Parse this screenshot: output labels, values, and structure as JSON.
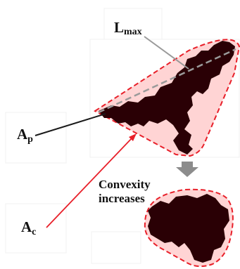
{
  "labels": {
    "lmax_main": "L",
    "lmax_sub": "max",
    "ap_main": "A",
    "ap_sub": "p",
    "ac_main": "A",
    "ac_sub": "c",
    "convexity_line1": "Convexity",
    "convexity_line2": "increases"
  },
  "colors": {
    "hull_fill": "#ffd4d4",
    "hull_stroke": "#e8202a",
    "particle": "#2a0005",
    "lmax_line": "#9a9a9a",
    "ap_line": "#1a1a1a",
    "ac_line": "#e8202a",
    "arrow_down": "#8c8c8c"
  }
}
